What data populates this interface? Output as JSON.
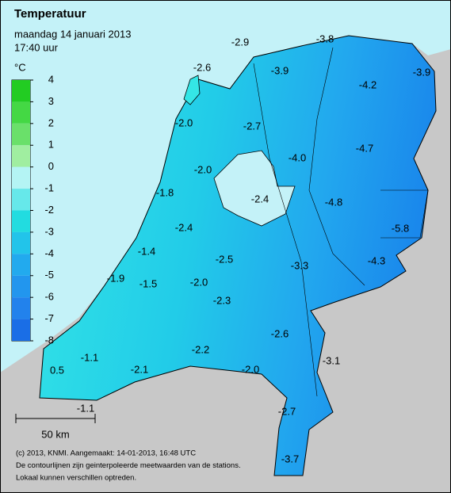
{
  "header": {
    "title": "Temperatuur",
    "date": "maandag 14 januari 2013",
    "time": "17:40 uur"
  },
  "legend": {
    "unit": "°C",
    "labels": [
      "4",
      "3",
      "2",
      "1",
      "0",
      "-1",
      "-2",
      "-3",
      "-4",
      "-5",
      "-6",
      "-7",
      "-8"
    ],
    "colors": [
      "#22cc22",
      "#44d844",
      "#6ae06a",
      "#a0eea0",
      "#b4f4f4",
      "#66e8ea",
      "#22dce0",
      "#22c4ea",
      "#22aaee",
      "#2296ee",
      "#2282ec",
      "#1a6ee6"
    ]
  },
  "stations": [
    "-2.9",
    "-3.8",
    "-2.6",
    "-3.9",
    "-3.9",
    "-4.2",
    "-2.0",
    "-2.7",
    "-4.7",
    "-4.0",
    "-2.0",
    "-1.8",
    "-2.4",
    "-4.8",
    "-5.8",
    "-2.4",
    "-1.4",
    "-2.5",
    "-3.3",
    "-4.3",
    "-1.9",
    "-1.5",
    "-2.0",
    "-2.3",
    "-2.6",
    "-2.2",
    "-3.1",
    "-1.1",
    "-2.1",
    "-2.0",
    "0.5",
    "-1.1",
    "-2.7",
    "-3.7"
  ],
  "scale": {
    "label": "50 km"
  },
  "footer": {
    "lines": [
      "(c) 2013, KNMI. Aangemaakt: 14-01-2013, 16:48 UTC",
      "De contourlijnen zijn geinterpoleerde meetwaarden van de stations.",
      "Lokaal kunnen verschillen optreden."
    ]
  }
}
